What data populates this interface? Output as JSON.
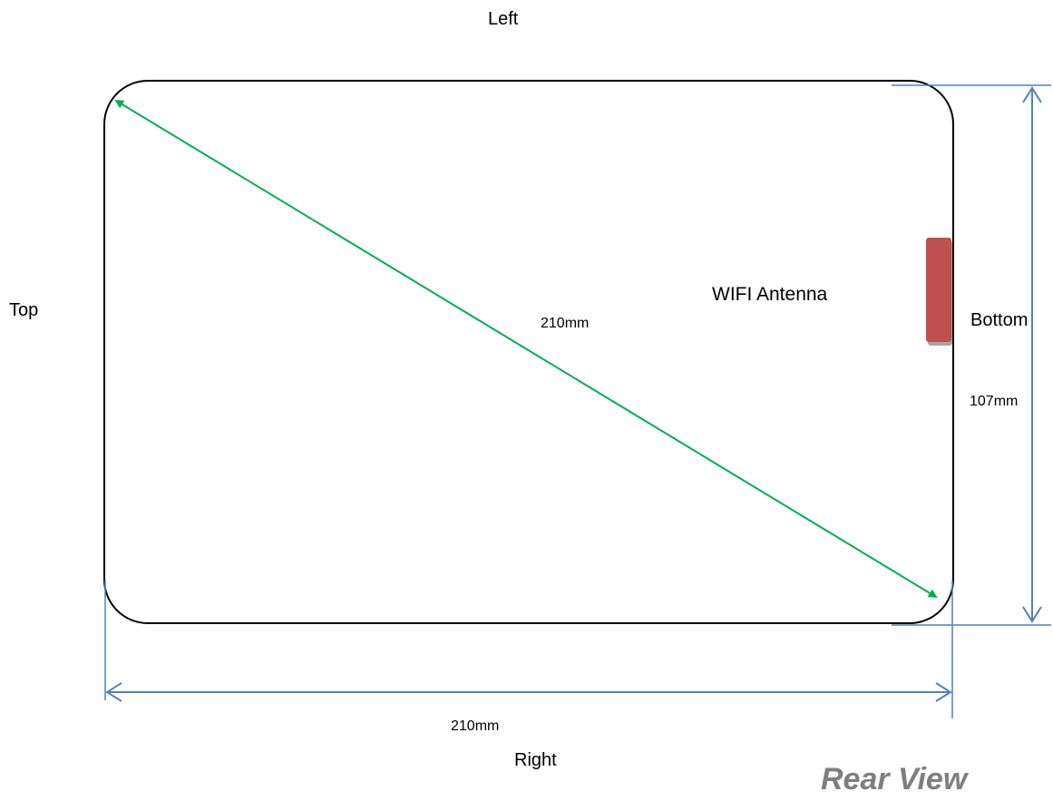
{
  "labels": {
    "left": "Left",
    "top": "Top",
    "bottom": "Bottom",
    "right": "Right",
    "antenna": "WIFI Antenna",
    "diagonal_dim": "210mm",
    "width_dim": "210mm",
    "height_dim": "107mm",
    "view_title": "Rear View"
  },
  "colors": {
    "outline": "#000000",
    "diagonal": "#00b050",
    "dimension": "#4f81bd",
    "antenna": "#c0504d",
    "view_title": "#7f7f7f"
  }
}
